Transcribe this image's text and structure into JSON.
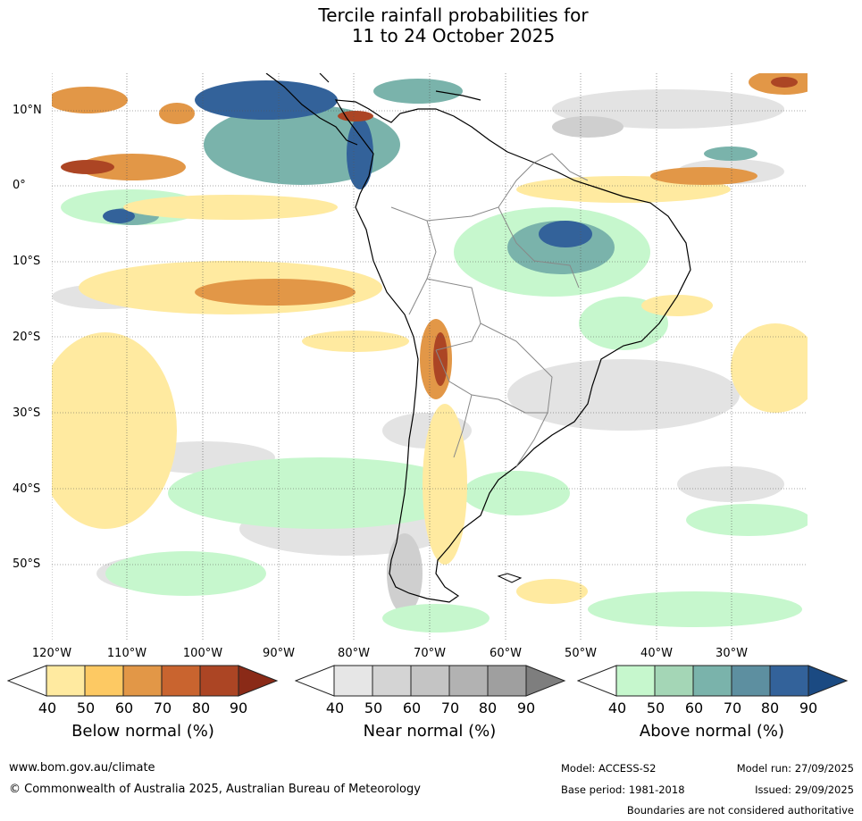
{
  "title": {
    "line1": "Tercile rainfall probabilities for",
    "line2": "11 to 24 October 2025"
  },
  "map": {
    "lat_labels": [
      "10°N",
      "0°",
      "10°S",
      "20°S",
      "30°S",
      "40°S",
      "50°S"
    ],
    "lon_labels": [
      "120°W",
      "110°W",
      "100°W",
      "90°W",
      "80°W",
      "70°W",
      "60°W",
      "50°W",
      "40°W",
      "30°W"
    ]
  },
  "colorbars": {
    "below": {
      "title": "Below normal (%)",
      "ticks": [
        "40",
        "50",
        "60",
        "70",
        "80",
        "90"
      ],
      "colors": [
        "#ffffff",
        "#ffeaa0",
        "#fdc963",
        "#e29747",
        "#c9642f",
        "#ac4524",
        "#8a2a17"
      ]
    },
    "near": {
      "title": "Near normal (%)",
      "ticks": [
        "40",
        "50",
        "60",
        "70",
        "80",
        "90"
      ],
      "colors": [
        "#ffffff",
        "#e6e6e6",
        "#d4d4d4",
        "#c4c4c4",
        "#b2b2b2",
        "#9f9f9f",
        "#7e7e7e"
      ]
    },
    "above": {
      "title": "Above normal (%)",
      "ticks": [
        "40",
        "50",
        "60",
        "70",
        "80",
        "90"
      ],
      "colors": [
        "#ffffff",
        "#c6f7cd",
        "#a4d6b6",
        "#7ab3ab",
        "#5d8fa0",
        "#33629a",
        "#1b4a82"
      ]
    }
  },
  "footer": {
    "website": "www.bom.gov.au/climate",
    "copyright": "© Commonwealth of Australia 2025, Australian Bureau of Meteorology",
    "model": "Model: ACCESS-S2",
    "base_period": "Base period: 1981-2018",
    "model_run": "Model run: 27/09/2025",
    "issued": "Issued: 29/09/2025",
    "disclaimer": "Boundaries are not considered authoritative"
  }
}
